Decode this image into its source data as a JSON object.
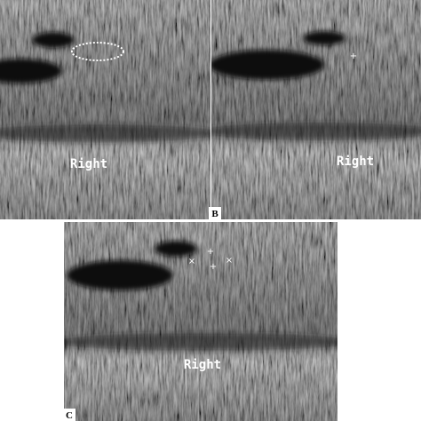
{
  "panels": [
    {
      "text": "Right"
    },
    {
      "label": "B",
      "text": "Right"
    },
    {
      "label": "C",
      "text": "Right"
    }
  ]
}
